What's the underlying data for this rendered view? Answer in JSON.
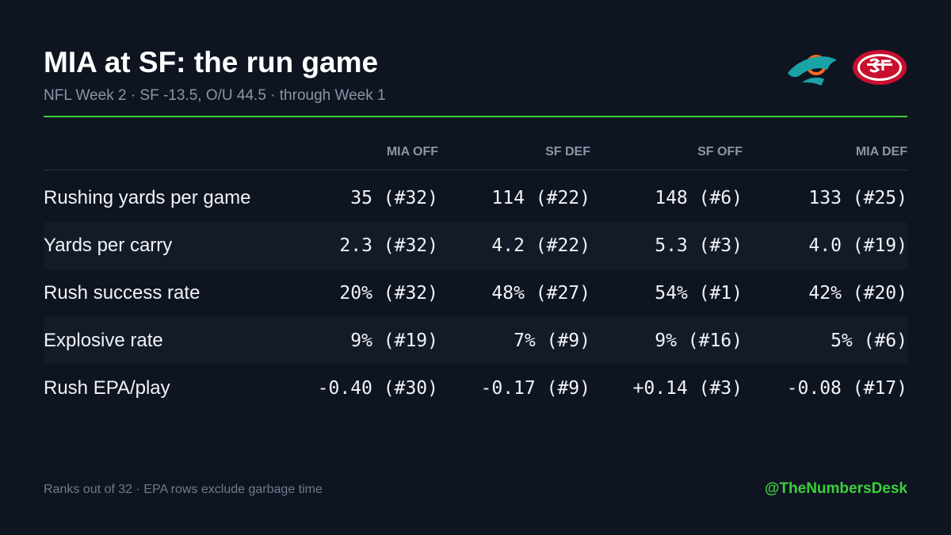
{
  "header": {
    "title": "MIA at SF: the run game",
    "subtitle": "NFL Week 2 · SF -13.5, O/U 44.5 · through Week 1"
  },
  "table": {
    "columns": [
      "MIA OFF",
      "SF DEF",
      "SF OFF",
      "MIA DEF"
    ],
    "rows": [
      {
        "label": "Rushing yards per game",
        "cells": [
          "35 (#32)",
          "114 (#22)",
          "148 (#6)",
          "133 (#25)"
        ]
      },
      {
        "label": "Yards per carry",
        "cells": [
          "2.3 (#32)",
          "4.2 (#22)",
          "5.3 (#3)",
          "4.0 (#19)"
        ]
      },
      {
        "label": "Rush success rate",
        "cells": [
          "20% (#32)",
          "48% (#27)",
          "54% (#1)",
          "42% (#20)"
        ]
      },
      {
        "label": "Explosive rate",
        "cells": [
          "9% (#19)",
          "7% (#9)",
          "9% (#16)",
          "5% (#6)"
        ]
      },
      {
        "label": "Rush EPA/play",
        "cells": [
          "-0.40 (#30)",
          "-0.17 (#9)",
          "+0.14 (#3)",
          "-0.08 (#17)"
        ]
      }
    ]
  },
  "footer": {
    "note": "Ranks out of 32 · EPA rows exclude garbage time",
    "handle": "@TheNumbersDesk"
  }
}
